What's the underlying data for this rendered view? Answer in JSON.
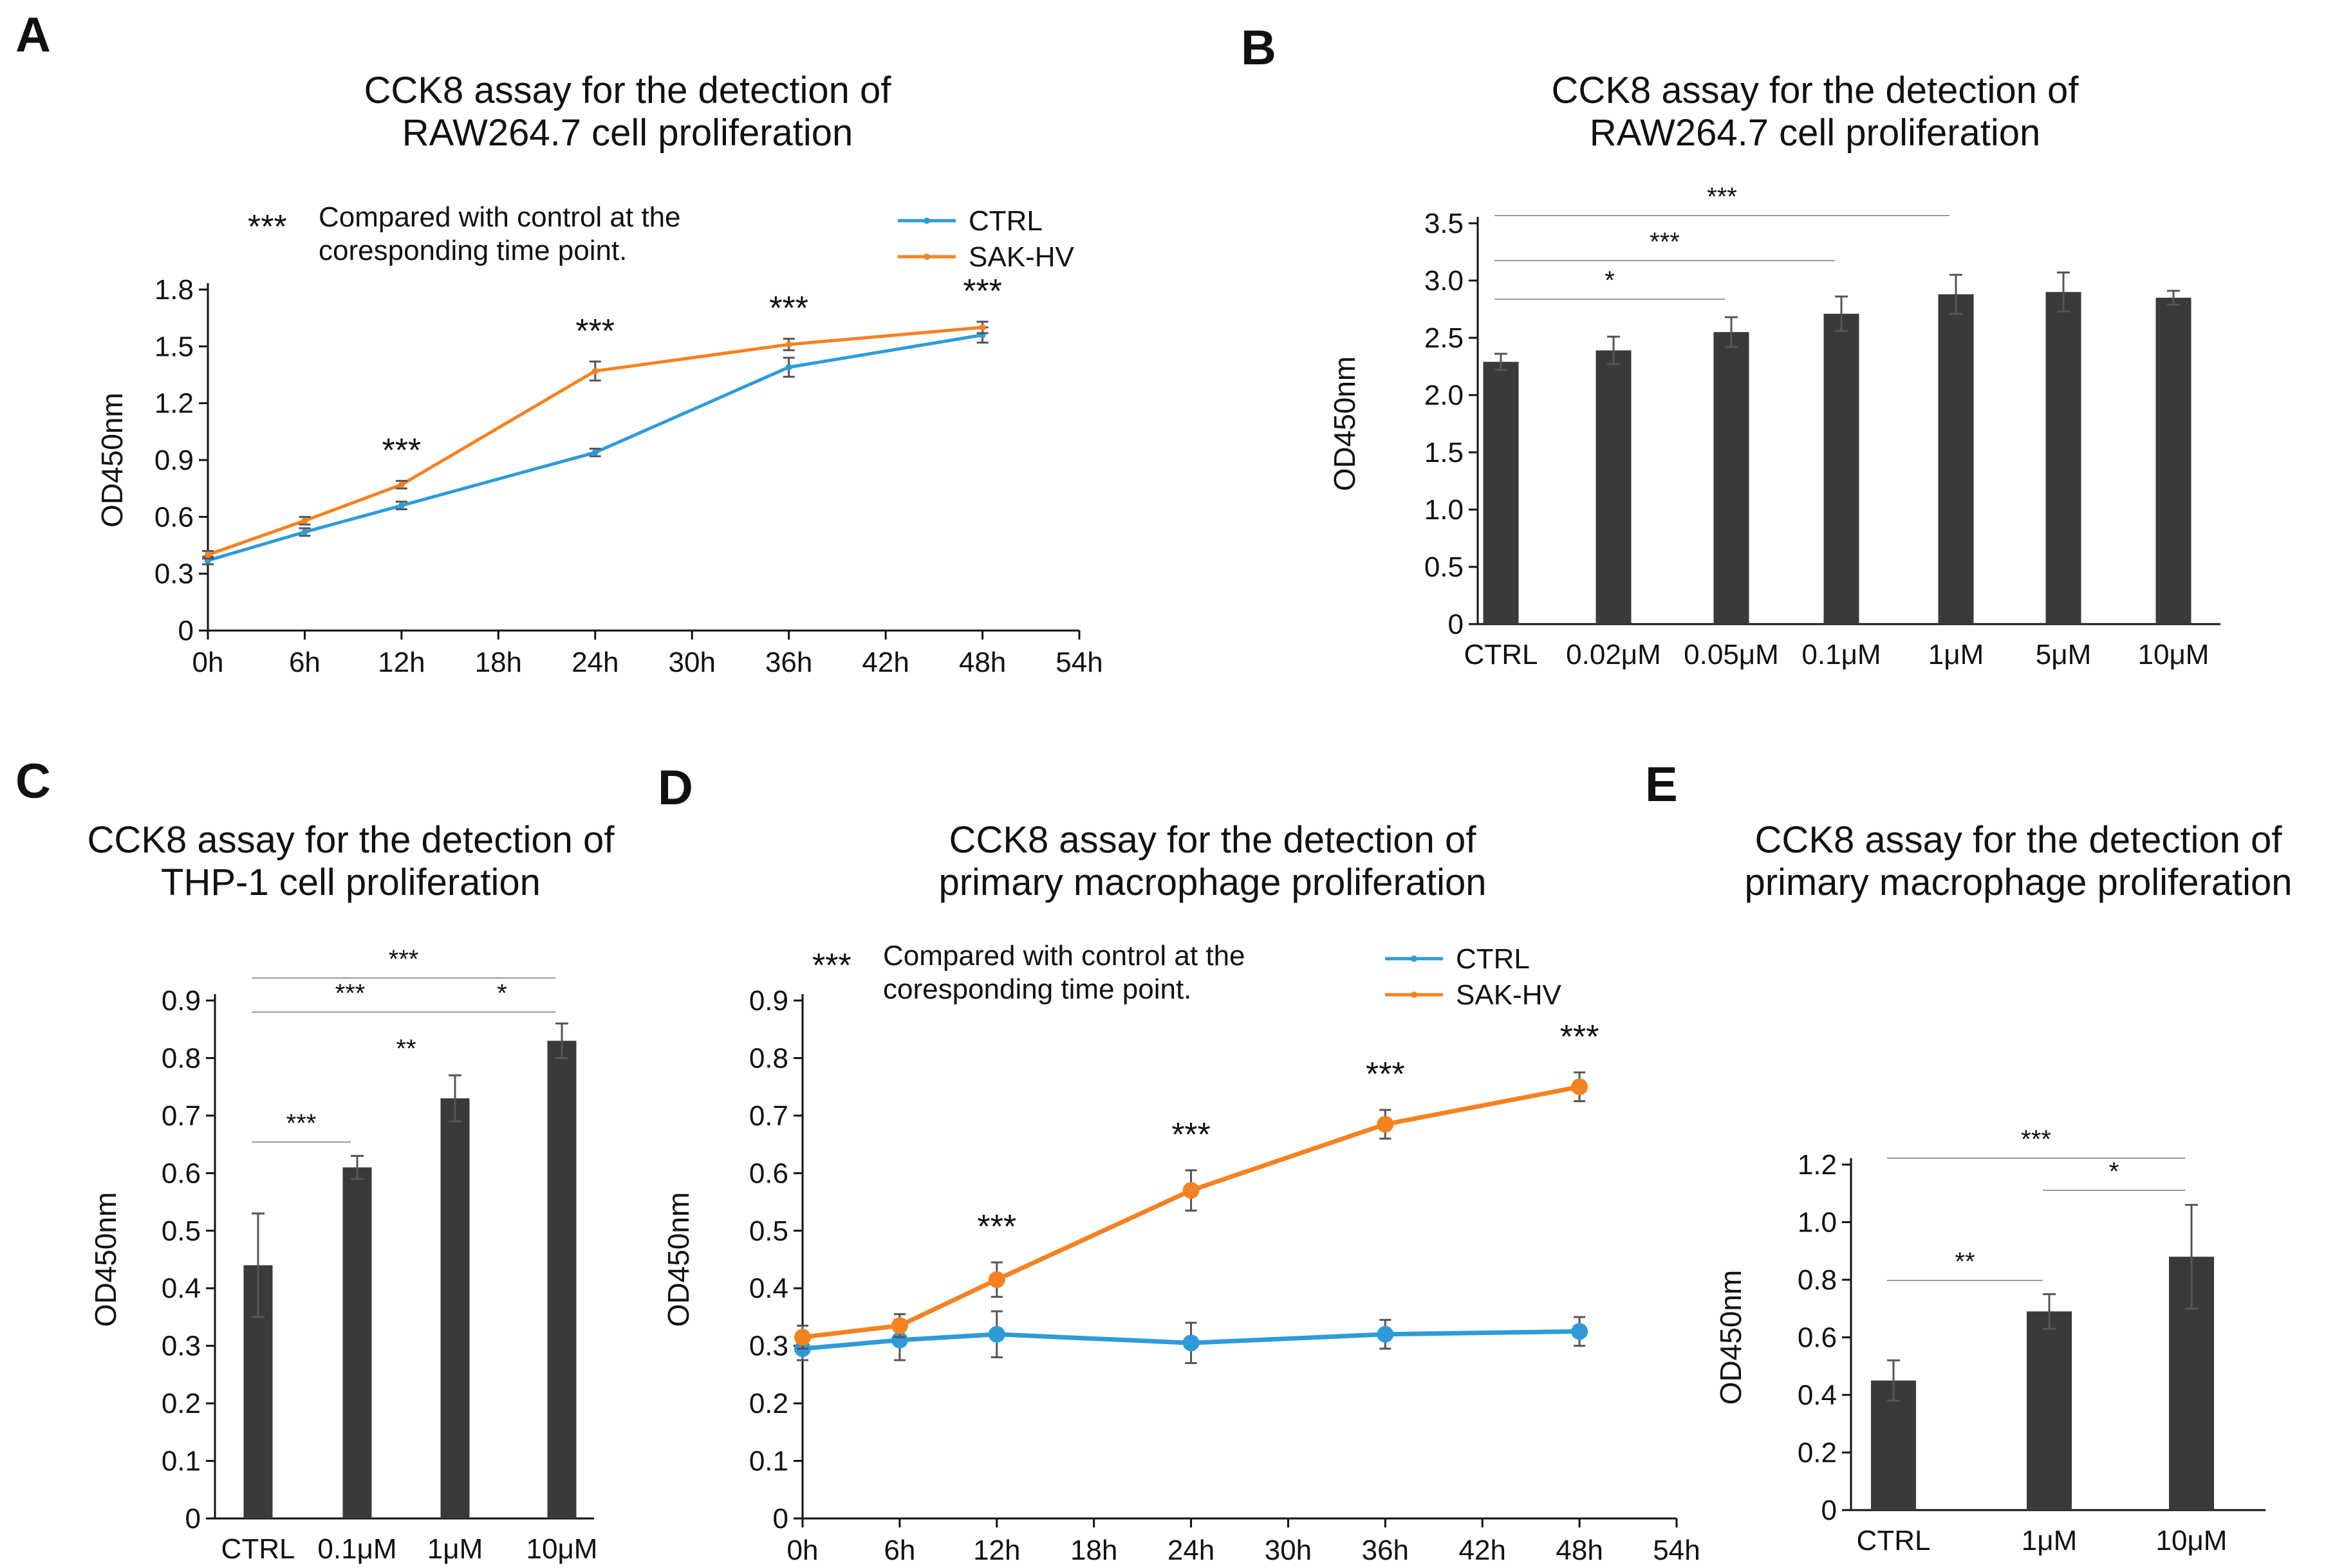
{
  "colors": {
    "ctrl": "#2E9BD8",
    "sak": "#F58220",
    "bar": "#3a3a3a",
    "error": "#555555"
  },
  "chart_data": [
    {
      "panel": "A",
      "type": "line",
      "title": [
        "CCK8 assay for the detection of",
        "RAW264.7 cell proliferation"
      ],
      "ylabel": "OD450nm",
      "xlabel": "",
      "x_ticks": [
        0,
        6,
        12,
        18,
        24,
        30,
        36,
        42,
        48,
        54
      ],
      "x_tick_labels": [
        "0h",
        "6h",
        "12h",
        "18h",
        "24h",
        "30h",
        "36h",
        "42h",
        "48h",
        "54h"
      ],
      "y_ticks": [
        0,
        0.3,
        0.6,
        0.9,
        1.2,
        1.5,
        1.8
      ],
      "y_tick_labels": [
        "0",
        "0.3",
        "0.6",
        "0.9",
        "1.2",
        "1.5",
        "1.8"
      ],
      "xlim": [
        0,
        54
      ],
      "ylim": [
        0,
        1.8
      ],
      "x": [
        0,
        6,
        12,
        24,
        36,
        48
      ],
      "series": [
        {
          "name": "CTRL",
          "values": [
            0.37,
            0.52,
            0.66,
            0.94,
            1.39,
            1.56
          ],
          "errors": [
            0.02,
            0.02,
            0.02,
            0.02,
            0.05,
            0.04
          ]
        },
        {
          "name": "SAK-HV",
          "values": [
            0.4,
            0.58,
            0.77,
            1.37,
            1.51,
            1.6
          ],
          "errors": [
            0.02,
            0.02,
            0.02,
            0.05,
            0.03,
            0.03
          ]
        }
      ],
      "legend": [
        "CTRL",
        "SAK-HV"
      ],
      "legend_position": "top-right",
      "note_stars": "***",
      "note_lines": [
        "Compared with control at the",
        "coresponding time point."
      ],
      "significance": [
        {
          "x": 12,
          "label": "***"
        },
        {
          "x": 24,
          "label": "***"
        },
        {
          "x": 36,
          "label": "***"
        },
        {
          "x": 48,
          "label": "***"
        }
      ],
      "marker": "small-dot"
    },
    {
      "panel": "B",
      "type": "bar",
      "title": [
        "CCK8 assay for the detection of",
        "RAW264.7 cell proliferation"
      ],
      "ylabel": "OD450nm",
      "xlabel": "",
      "categories": [
        "CTRL",
        "0.02μM",
        "0.05μM",
        "0.1μM",
        "1μM",
        "5μM",
        "10μM"
      ],
      "values": [
        2.29,
        2.39,
        2.55,
        2.71,
        2.88,
        2.9,
        2.85
      ],
      "errors": [
        0.07,
        0.12,
        0.13,
        0.15,
        0.17,
        0.17,
        0.06
      ],
      "y_ticks": [
        0,
        0.5,
        1.0,
        1.5,
        2.0,
        2.5,
        3.0,
        3.5
      ],
      "y_tick_labels": [
        "0",
        "0.5",
        "1.0",
        "1.5",
        "2.0",
        "2.5",
        "3.0",
        "3.5"
      ],
      "ylim": [
        0,
        3.5
      ],
      "brackets": [
        {
          "from": 0,
          "to": 2,
          "label": "*"
        },
        {
          "from": 0,
          "to": 3,
          "label": "***"
        },
        {
          "from": 0,
          "to": 4,
          "label": "***"
        }
      ]
    },
    {
      "panel": "C",
      "type": "bar",
      "title": [
        "CCK8 assay for the detection of",
        "THP-1 cell proliferation"
      ],
      "ylabel": "OD450nm",
      "xlabel": "",
      "categories": [
        "CTRL",
        "0.1μM",
        "1μM",
        "10μM"
      ],
      "values": [
        0.44,
        0.61,
        0.73,
        0.83
      ],
      "errors": [
        0.09,
        0.02,
        0.04,
        0.03
      ],
      "y_ticks": [
        0,
        0.1,
        0.2,
        0.3,
        0.4,
        0.5,
        0.6,
        0.7,
        0.8,
        0.9
      ],
      "y_tick_labels": [
        "0",
        "0.1",
        "0.2",
        "0.3",
        "0.4",
        "0.5",
        "0.6",
        "0.7",
        "0.8",
        "0.9"
      ],
      "ylim": [
        0,
        0.9
      ],
      "brackets": [
        {
          "from": 0,
          "to": 1,
          "label": "***"
        },
        {
          "from": 0,
          "to": 2,
          "label": "***"
        },
        {
          "from": 2,
          "to": 3,
          "label": "*"
        },
        {
          "from": 0,
          "to": 3,
          "label": "***"
        }
      ],
      "annotations": [
        {
          "between": [
            1,
            2
          ],
          "label": "**"
        }
      ]
    },
    {
      "panel": "D",
      "type": "line",
      "title": [
        "CCK8 assay for the detection of",
        "primary macrophage proliferation"
      ],
      "ylabel": "OD450nm",
      "xlabel": "",
      "x_ticks": [
        0,
        6,
        12,
        18,
        24,
        30,
        36,
        42,
        48,
        54
      ],
      "x_tick_labels": [
        "0h",
        "6h",
        "12h",
        "18h",
        "24h",
        "30h",
        "36h",
        "42h",
        "48h",
        "54h"
      ],
      "y_ticks": [
        0,
        0.1,
        0.2,
        0.3,
        0.4,
        0.5,
        0.6,
        0.7,
        0.8,
        0.9
      ],
      "y_tick_labels": [
        "0",
        "0.1",
        "0.2",
        "0.3",
        "0.4",
        "0.5",
        "0.6",
        "0.7",
        "0.8",
        "0.9"
      ],
      "xlim": [
        0,
        54
      ],
      "ylim": [
        0,
        0.9
      ],
      "x": [
        0,
        6,
        12,
        24,
        36,
        48
      ],
      "series": [
        {
          "name": "CTRL",
          "values": [
            0.295,
            0.31,
            0.32,
            0.305,
            0.32,
            0.325
          ],
          "errors": [
            0.02,
            0.035,
            0.04,
            0.035,
            0.025,
            0.025
          ]
        },
        {
          "name": "SAK-HV",
          "values": [
            0.315,
            0.335,
            0.415,
            0.57,
            0.685,
            0.75
          ],
          "errors": [
            0.02,
            0.02,
            0.03,
            0.035,
            0.025,
            0.025
          ]
        }
      ],
      "legend": [
        "CTRL",
        "SAK-HV"
      ],
      "legend_position": "top-right",
      "note_stars": "***",
      "note_lines": [
        "Compared with control at the",
        "coresponding time point."
      ],
      "significance": [
        {
          "x": 12,
          "label": "***"
        },
        {
          "x": 24,
          "label": "***"
        },
        {
          "x": 36,
          "label": "***"
        },
        {
          "x": 48,
          "label": "***"
        }
      ],
      "marker": "large-dot"
    },
    {
      "panel": "E",
      "type": "bar",
      "title": [
        "CCK8 assay for the detection of",
        "primary macrophage proliferation"
      ],
      "ylabel": "OD450nm",
      "xlabel": "",
      "categories": [
        "CTRL",
        "1μM",
        "10μM"
      ],
      "values": [
        0.45,
        0.69,
        0.88
      ],
      "errors": [
        0.07,
        0.06,
        0.18
      ],
      "y_ticks": [
        0,
        0.2,
        0.4,
        0.6,
        0.8,
        1.0,
        1.2
      ],
      "y_tick_labels": [
        "0",
        "0.2",
        "0.4",
        "0.6",
        "0.8",
        "1.0",
        "1.2"
      ],
      "ylim": [
        0,
        1.2
      ],
      "brackets": [
        {
          "from": 0,
          "to": 1,
          "label": "**"
        },
        {
          "from": 1,
          "to": 2,
          "label": "*"
        },
        {
          "from": 0,
          "to": 2,
          "label": "***"
        }
      ]
    }
  ]
}
